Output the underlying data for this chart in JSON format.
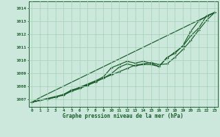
{
  "title": "Graphe pression niveau de la mer (hPa)",
  "bg_color": "#cce8dd",
  "grid_color": "#aad4bb",
  "line_color": "#1a5c2a",
  "x_ticks": [
    0,
    1,
    2,
    3,
    4,
    5,
    6,
    7,
    8,
    9,
    10,
    11,
    12,
    13,
    14,
    15,
    16,
    17,
    18,
    19,
    20,
    21,
    22,
    23
  ],
  "y_ticks": [
    1007,
    1008,
    1009,
    1010,
    1011,
    1012,
    1013,
    1014
  ],
  "xlim": [
    -0.4,
    23.4
  ],
  "ylim": [
    1006.4,
    1014.5
  ],
  "series": [
    {
      "y": [
        1006.75,
        1006.9,
        1007.05,
        1007.2,
        1007.35,
        1007.7,
        1007.85,
        1008.1,
        1008.35,
        1008.6,
        1008.85,
        1009.1,
        1009.35,
        1009.6,
        1009.7,
        1009.8,
        1009.65,
        1009.7,
        1010.2,
        1010.8,
        1011.5,
        1012.3,
        1013.05,
        1013.65
      ],
      "marker": "+",
      "lw": 0.9
    },
    {
      "y": [
        1006.75,
        1006.9,
        1007.0,
        1007.15,
        1007.35,
        1007.65,
        1007.9,
        1008.15,
        1008.4,
        1008.7,
        1009.4,
        1009.65,
        1009.9,
        1009.75,
        1009.9,
        1009.75,
        1009.5,
        1010.15,
        1010.6,
        1011.05,
        1011.85,
        1012.45,
        1013.4,
        1013.65
      ],
      "marker": "+",
      "lw": 0.9
    },
    {
      "y": [
        1006.75,
        1006.9,
        1007.0,
        1007.15,
        1007.3,
        1007.6,
        1007.8,
        1008.05,
        1008.3,
        1008.6,
        1008.95,
        1009.45,
        1009.7,
        1009.55,
        1009.65,
        1009.65,
        1009.5,
        1010.2,
        1010.5,
        1011.1,
        1012.2,
        1013.0,
        1013.35,
        1013.65
      ],
      "marker": "+",
      "lw": 0.9
    },
    {
      "y": [
        1006.75,
        1007.1,
        1013.65
      ],
      "x": [
        0,
        1,
        23
      ],
      "marker": null,
      "lw": 0.9
    }
  ]
}
